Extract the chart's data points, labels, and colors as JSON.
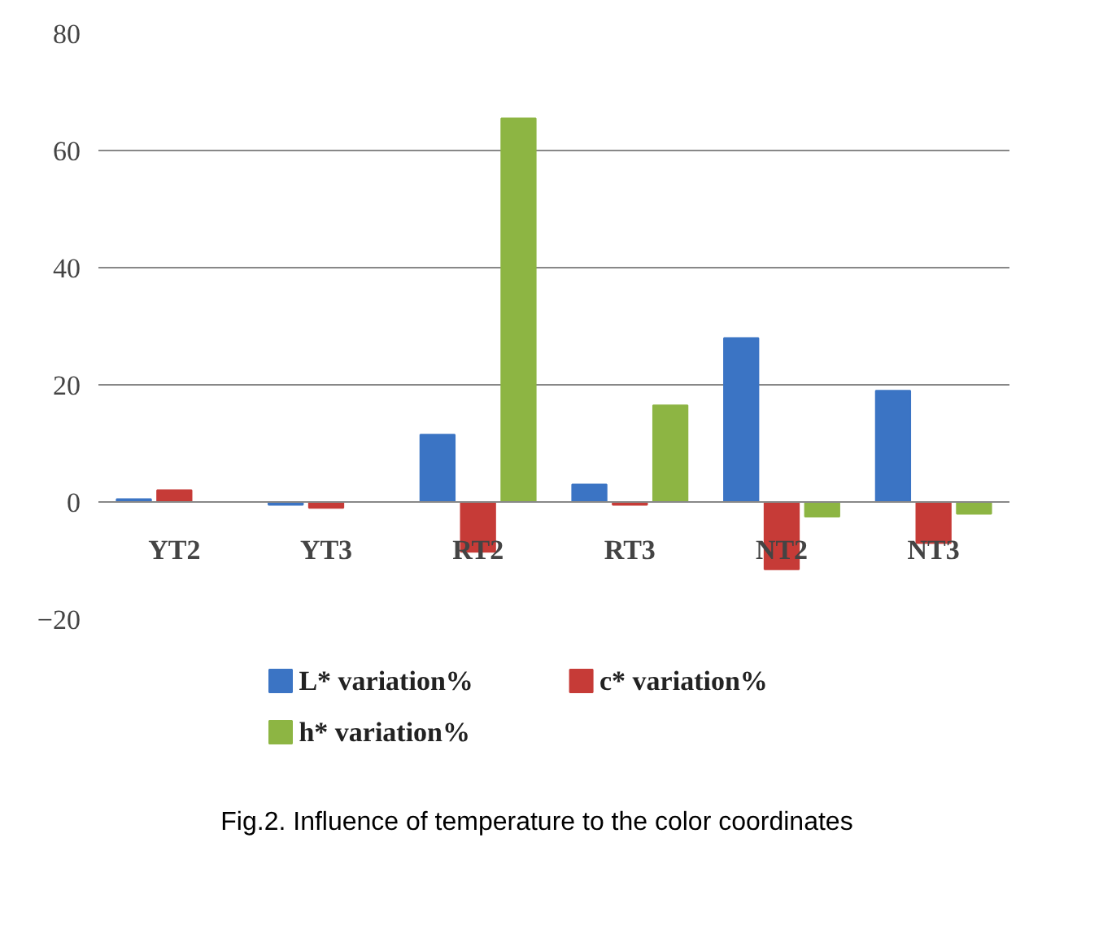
{
  "chart_data": {
    "type": "bar",
    "categories": [
      "YT2",
      "YT3",
      "RT2",
      "RT3",
      "NT2",
      "NT3"
    ],
    "series": [
      {
        "name": "L* variation%",
        "color": "#3b74c4",
        "values": [
          0.5,
          -0.5,
          11.5,
          3,
          28,
          19
        ]
      },
      {
        "name": "c* variation%",
        "color": "#c63b37",
        "values": [
          2,
          -1,
          -8.5,
          -0.5,
          -11.5,
          -7
        ]
      },
      {
        "name": "h* variation%",
        "color": "#8db543",
        "values": [
          0,
          0,
          65.5,
          16.5,
          -2.5,
          -2
        ]
      }
    ],
    "ylim": [
      -20,
      80
    ],
    "yticks": [
      -20,
      0,
      20,
      40,
      60,
      80
    ],
    "grid": "y",
    "legend": "bottom",
    "annotations": [
      "Fig.2. Influence of temperature to the color coordinates"
    ]
  }
}
